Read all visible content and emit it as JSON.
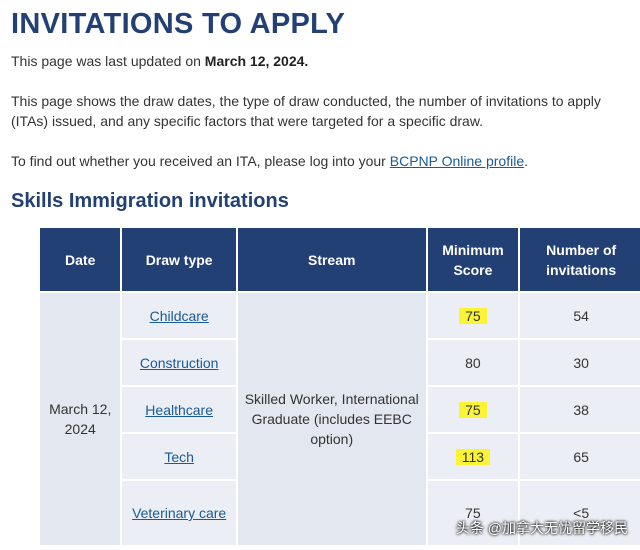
{
  "page": {
    "title": "INVITATIONS TO APPLY",
    "updated_prefix": "This page was last updated on ",
    "updated_date": "March 12, 2024.",
    "description": "This page shows the draw dates, the type of draw conducted, the number of invitations to apply (ITAs) issued, and any specific factors that were targeted for a specific draw.",
    "login_prefix": "To find out whether you received an ITA, please log into your ",
    "login_link": "BCPNP Online profile",
    "login_suffix": "."
  },
  "section": {
    "title": "Skills Immigration invitations"
  },
  "table": {
    "headers": {
      "date": "Date",
      "draw_type": "Draw type",
      "stream": "Stream",
      "min_score": "Minimum Score",
      "invitations": "Number of invitations"
    },
    "date": "March 12, 2024",
    "stream": "Skilled Worker, International Graduate (includes EEBC option)",
    "rows": [
      {
        "draw_type": "Childcare",
        "min_score": "75",
        "invitations": "54",
        "highlighted": true
      },
      {
        "draw_type": "Construction",
        "min_score": "80",
        "invitations": "30",
        "highlighted": false
      },
      {
        "draw_type": "Healthcare",
        "min_score": "75",
        "invitations": "38",
        "highlighted": true
      },
      {
        "draw_type": "Tech",
        "min_score": "113",
        "invitations": "65",
        "highlighted": true
      },
      {
        "draw_type": "Veterinary care",
        "min_score": "75",
        "invitations": "<5",
        "highlighted": false
      }
    ],
    "highlight_color": "#fbf336",
    "header_color": "#234075"
  },
  "watermark": "头条 @加拿大无忧留学移民"
}
